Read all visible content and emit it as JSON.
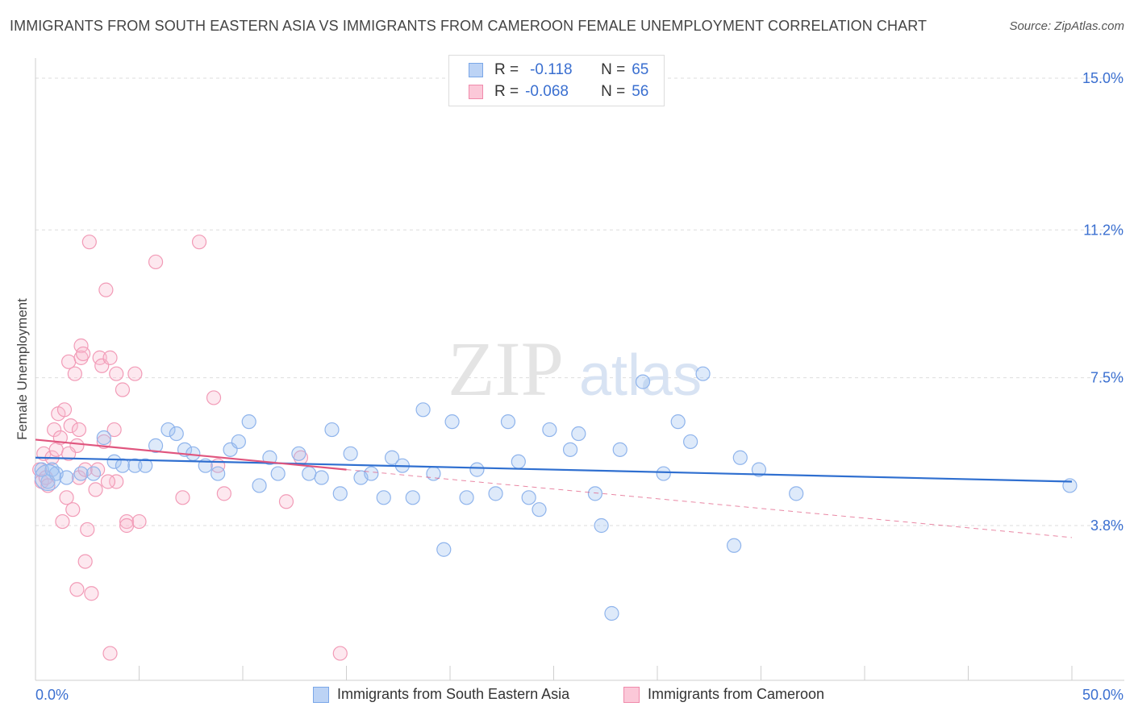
{
  "title": "IMMIGRANTS FROM SOUTH EASTERN ASIA VS IMMIGRANTS FROM CAMEROON FEMALE UNEMPLOYMENT CORRELATION CHART",
  "source": "Source: ZipAtlas.com",
  "watermark": {
    "zip": "ZIP",
    "atlas": "atlas"
  },
  "legend_top": [
    {
      "r_label": "R =",
      "r_value": "-0.118",
      "n_label": "N =",
      "n_value": "65",
      "color": "#7aa7e8",
      "fill": "#bcd3f5"
    },
    {
      "r_label": "R =",
      "r_value": "-0.068",
      "n_label": "N =",
      "n_value": "56",
      "color": "#f08aab",
      "fill": "#fbc8d8"
    }
  ],
  "x_axis_labels": {
    "min": "0.0%",
    "max": "50.0%"
  },
  "colors": {
    "blue_point": "#8fb4ec",
    "blue_fill": "rgba(160,195,240,0.35)",
    "blue_line": "#2f6fd0",
    "pink_point": "#f29bb7",
    "pink_fill": "rgba(248,190,210,0.35)",
    "pink_line": "#e0557e",
    "tick_label": "#3a6fd0",
    "grid": "#dddddd"
  },
  "chart_data": {
    "type": "scatter",
    "title": "IMMIGRANTS FROM SOUTH EASTERN ASIA VS IMMIGRANTS FROM CAMEROON FEMALE UNEMPLOYMENT CORRELATION CHART",
    "xlabel": "",
    "ylabel": "Female Unemployment",
    "xlim": [
      0,
      50
    ],
    "ylim": [
      0,
      15.9
    ],
    "y_ticks": [
      3.8,
      7.5,
      11.2,
      15.0
    ],
    "y_tick_labels": [
      "3.8%",
      "7.5%",
      "11.2%",
      "15.0%"
    ],
    "grid": "horizontal dashed",
    "legend_position": "bottom",
    "series": [
      {
        "name": "Immigrants from South Eastern Asia",
        "r": -0.118,
        "n": 65,
        "trend": {
          "x": [
            0,
            50
          ],
          "y": [
            5.5,
            4.9
          ]
        },
        "points": [
          [
            0.3,
            5.2
          ],
          [
            0.6,
            4.9
          ],
          [
            0.8,
            5.2
          ],
          [
            1.0,
            5.1
          ],
          [
            1.5,
            5.0
          ],
          [
            2.2,
            5.1
          ],
          [
            2.8,
            5.1
          ],
          [
            3.3,
            6.0
          ],
          [
            3.8,
            5.4
          ],
          [
            4.2,
            5.3
          ],
          [
            4.8,
            5.3
          ],
          [
            5.3,
            5.3
          ],
          [
            5.8,
            5.8
          ],
          [
            6.4,
            6.2
          ],
          [
            6.8,
            6.1
          ],
          [
            7.2,
            5.7
          ],
          [
            7.6,
            5.6
          ],
          [
            8.2,
            5.3
          ],
          [
            8.8,
            5.1
          ],
          [
            9.4,
            5.7
          ],
          [
            9.8,
            5.9
          ],
          [
            10.3,
            6.4
          ],
          [
            10.8,
            4.8
          ],
          [
            11.3,
            5.5
          ],
          [
            11.7,
            5.1
          ],
          [
            12.7,
            5.6
          ],
          [
            13.2,
            5.1
          ],
          [
            13.8,
            5.0
          ],
          [
            14.3,
            6.2
          ],
          [
            14.7,
            4.6
          ],
          [
            15.2,
            5.6
          ],
          [
            15.7,
            5.0
          ],
          [
            16.2,
            5.1
          ],
          [
            16.8,
            4.5
          ],
          [
            17.2,
            5.5
          ],
          [
            17.7,
            5.3
          ],
          [
            18.2,
            4.5
          ],
          [
            18.7,
            6.7
          ],
          [
            19.2,
            5.1
          ],
          [
            19.7,
            3.2
          ],
          [
            20.1,
            6.4
          ],
          [
            20.8,
            4.5
          ],
          [
            21.3,
            5.2
          ],
          [
            22.2,
            4.6
          ],
          [
            22.8,
            6.4
          ],
          [
            23.3,
            5.4
          ],
          [
            23.8,
            4.5
          ],
          [
            24.3,
            4.2
          ],
          [
            24.8,
            6.2
          ],
          [
            25.8,
            5.7
          ],
          [
            26.2,
            6.1
          ],
          [
            27.0,
            4.6
          ],
          [
            27.3,
            3.8
          ],
          [
            27.8,
            1.6
          ],
          [
            28.2,
            5.7
          ],
          [
            29.3,
            7.4
          ],
          [
            30.3,
            5.1
          ],
          [
            31.0,
            6.4
          ],
          [
            31.6,
            5.9
          ],
          [
            32.2,
            7.6
          ],
          [
            33.7,
            3.3
          ],
          [
            34.0,
            5.5
          ],
          [
            34.9,
            5.2
          ],
          [
            36.7,
            4.6
          ],
          [
            49.9,
            4.8
          ]
        ]
      },
      {
        "name": "Immigrants from Cameroon",
        "r": -0.068,
        "n": 56,
        "trend": {
          "x": [
            0,
            15
          ],
          "y": [
            5.95,
            5.2
          ]
        },
        "trend_extension": {
          "x": [
            15,
            50
          ],
          "y": [
            5.2,
            3.5
          ]
        },
        "points": [
          [
            0.2,
            5.2
          ],
          [
            0.3,
            4.9
          ],
          [
            0.4,
            5.6
          ],
          [
            0.5,
            5.0
          ],
          [
            0.6,
            4.8
          ],
          [
            0.8,
            5.5
          ],
          [
            0.9,
            6.2
          ],
          [
            1.0,
            5.7
          ],
          [
            1.1,
            6.6
          ],
          [
            1.2,
            6.0
          ],
          [
            1.3,
            3.9
          ],
          [
            1.4,
            6.7
          ],
          [
            1.5,
            4.5
          ],
          [
            1.6,
            7.9
          ],
          [
            1.7,
            6.3
          ],
          [
            1.8,
            4.2
          ],
          [
            1.9,
            7.6
          ],
          [
            2.0,
            5.8
          ],
          [
            2.0,
            2.2
          ],
          [
            2.1,
            5.0
          ],
          [
            2.1,
            6.2
          ],
          [
            2.2,
            8.3
          ],
          [
            2.2,
            8.0
          ],
          [
            2.3,
            8.1
          ],
          [
            2.4,
            5.2
          ],
          [
            2.4,
            2.9
          ],
          [
            2.5,
            3.7
          ],
          [
            2.6,
            10.9
          ],
          [
            2.7,
            2.1
          ],
          [
            2.9,
            4.7
          ],
          [
            3.0,
            5.2
          ],
          [
            3.1,
            8.0
          ],
          [
            3.2,
            7.8
          ],
          [
            3.3,
            5.9
          ],
          [
            3.4,
            9.7
          ],
          [
            3.6,
            0.6
          ],
          [
            3.6,
            8.0
          ],
          [
            3.8,
            6.2
          ],
          [
            3.9,
            4.9
          ],
          [
            3.9,
            7.6
          ],
          [
            4.2,
            7.2
          ],
          [
            4.4,
            3.9
          ],
          [
            4.4,
            3.8
          ],
          [
            4.8,
            7.6
          ],
          [
            5.8,
            10.4
          ],
          [
            7.1,
            4.5
          ],
          [
            7.9,
            10.9
          ],
          [
            8.6,
            7.0
          ],
          [
            8.8,
            5.3
          ],
          [
            9.1,
            4.6
          ],
          [
            12.1,
            4.4
          ],
          [
            12.8,
            5.5
          ],
          [
            14.7,
            0.6
          ],
          [
            5.0,
            3.9
          ],
          [
            3.5,
            4.9
          ],
          [
            1.6,
            5.6
          ]
        ]
      }
    ]
  }
}
